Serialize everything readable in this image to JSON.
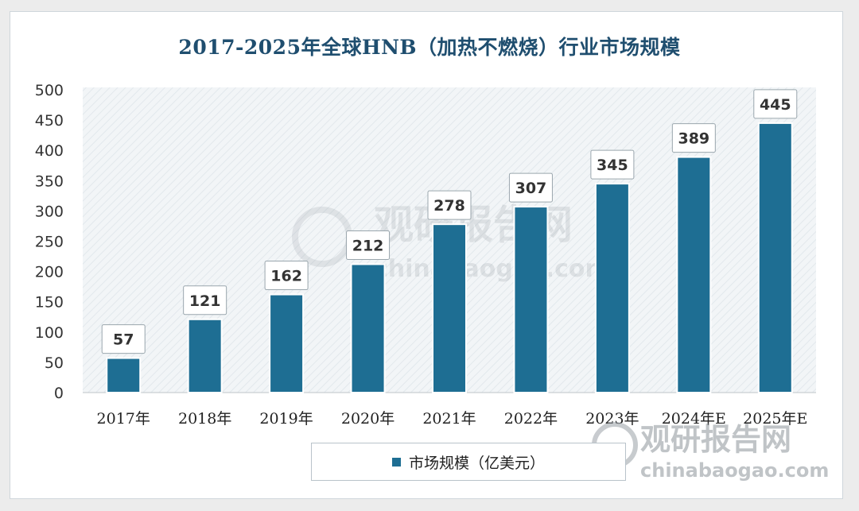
{
  "chart_data": {
    "type": "bar",
    "title": "2017-2025年全球HNB（加热不燃烧）行业市场规模",
    "categories": [
      "2017年",
      "2018年",
      "2019年",
      "2020年",
      "2021年",
      "2022年",
      "2023年",
      "2024年E",
      "2025年E"
    ],
    "series": [
      {
        "name": "市场规模（亿美元）",
        "values": [
          57,
          121,
          162,
          212,
          278,
          307,
          345,
          389,
          445
        ]
      }
    ],
    "data_labels": [
      "57",
      "121",
      "162",
      "212",
      "278",
      "307",
      "345",
      "389",
      "445"
    ],
    "yticks": [
      "0",
      "50",
      "100",
      "150",
      "200",
      "250",
      "300",
      "350",
      "400",
      "450",
      "500"
    ],
    "ylim": [
      0,
      500
    ],
    "grid": false,
    "legend_position": "bottom",
    "colors": {
      "bar": "#1e6e93",
      "title": "#1f4e6f",
      "plot_background": "#eef2f4"
    }
  },
  "watermark": {
    "cn": "观研报告网",
    "en": "chinabaogao.com"
  }
}
